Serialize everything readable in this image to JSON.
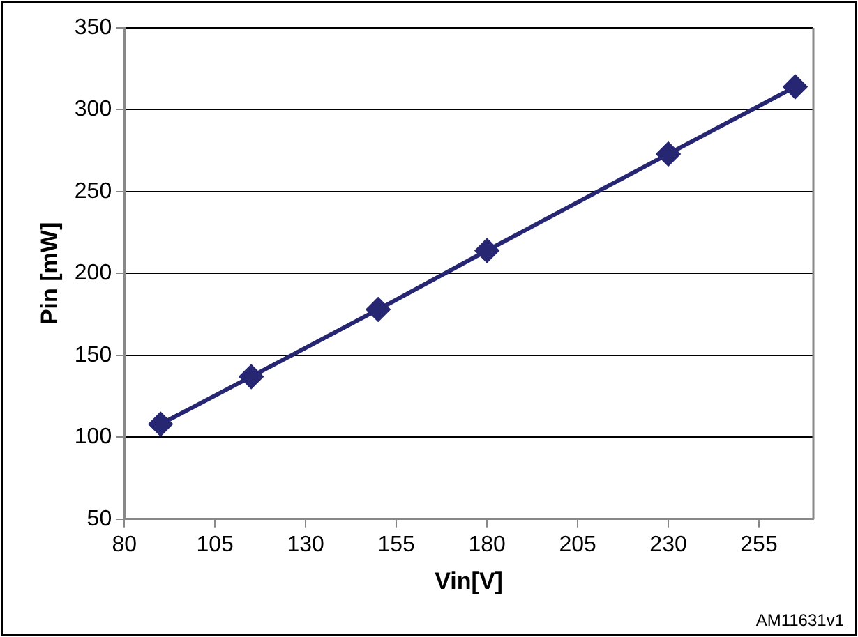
{
  "chart_data": {
    "type": "line",
    "xlabel": "Vin[V]",
    "ylabel": "Pin [mW]",
    "x": [
      90,
      115,
      150,
      180,
      230,
      265
    ],
    "series": [
      {
        "color": "#262673",
        "values": [
          108,
          137,
          178,
          214,
          273,
          314
        ]
      }
    ],
    "xlim": [
      80,
      270
    ],
    "xticks": [
      80,
      105,
      130,
      155,
      180,
      205,
      230,
      255
    ],
    "ylim": [
      50,
      350
    ],
    "yticks": [
      50,
      100,
      150,
      200,
      250,
      300,
      350
    ],
    "grid": "y",
    "marker": "diamond",
    "legend": false,
    "annotations": [
      "AM11631v1"
    ]
  }
}
